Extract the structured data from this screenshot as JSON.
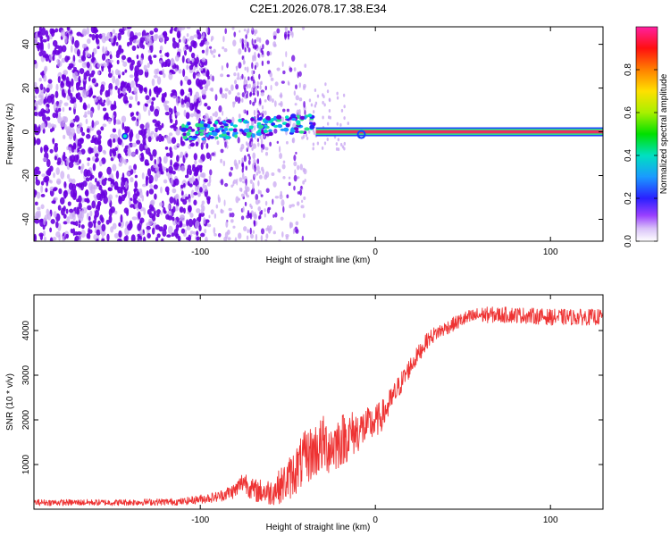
{
  "title": "C2E1.2026.078.17.38.E34",
  "colors": {
    "snr_line": "#ee3333",
    "speckle_dark": "#6a00e0",
    "speckle_light": "#c9a8f2",
    "track_core": "#e83060",
    "track_edge": "#2fe08a"
  },
  "chart_data": [
    {
      "type": "heatmap",
      "name": "spectrogram",
      "xlabel": "Height of straight line (km)",
      "ylabel": "Frequency (Hz)",
      "xlim": [
        -195,
        130
      ],
      "ylim": [
        -50,
        48
      ],
      "xticks": [
        -100,
        0,
        100
      ],
      "xtick_labels": [
        "-100",
        "0",
        "100"
      ],
      "yticks": [
        -40,
        -20,
        0,
        20,
        40
      ],
      "ytick_labels": [
        "-40",
        "-20",
        "0",
        "20",
        "40"
      ],
      "carrier_frequency_hz": 0,
      "carrier_start_km": -34,
      "colorbar": {
        "label": "Normalized spectral amplitude",
        "range": [
          0,
          1
        ],
        "ticks": [
          0.0,
          0.2,
          0.4,
          0.6,
          0.8
        ],
        "tick_labels": [
          "0.0",
          "0.2",
          "0.4",
          "0.6",
          "0.8"
        ]
      }
    },
    {
      "type": "line",
      "name": "snr",
      "xlabel": "Height of straight line (km)",
      "ylabel": "SNR (10 * v/v)",
      "xlim": [
        -195,
        130
      ],
      "ylim": [
        0,
        4800
      ],
      "xticks": [
        -100,
        0,
        100
      ],
      "xtick_labels": [
        "-100",
        "0",
        "100"
      ],
      "yticks": [
        1000,
        2000,
        3000,
        4000
      ],
      "ytick_labels": [
        "1000",
        "2000",
        "3000",
        "4000"
      ],
      "series": [
        {
          "name": "SNR",
          "x": [
            -195,
            -150,
            -110,
            -90,
            -80,
            -75,
            -70,
            -60,
            -55,
            -50,
            -45,
            -40,
            -35,
            -30,
            -25,
            -20,
            -15,
            -10,
            -5,
            0,
            5,
            10,
            15,
            20,
            25,
            30,
            35,
            40,
            45,
            50,
            55,
            60,
            80,
            100,
            130
          ],
          "y": [
            150,
            150,
            170,
            280,
            420,
            650,
            420,
            380,
            500,
            650,
            900,
            1150,
            1300,
            1450,
            1400,
            1550,
            1650,
            1750,
            1850,
            1950,
            2150,
            2500,
            2850,
            3200,
            3500,
            3800,
            3950,
            4050,
            4150,
            4250,
            4300,
            4350,
            4350,
            4300,
            4300
          ],
          "noise": [
            70,
            70,
            80,
            120,
            180,
            250,
            260,
            300,
            380,
            480,
            560,
            620,
            640,
            660,
            640,
            620,
            560,
            480,
            420,
            380,
            340,
            300,
            250,
            220,
            200,
            180,
            170,
            160,
            160,
            170,
            180,
            180,
            180,
            180,
            180
          ]
        }
      ]
    }
  ]
}
